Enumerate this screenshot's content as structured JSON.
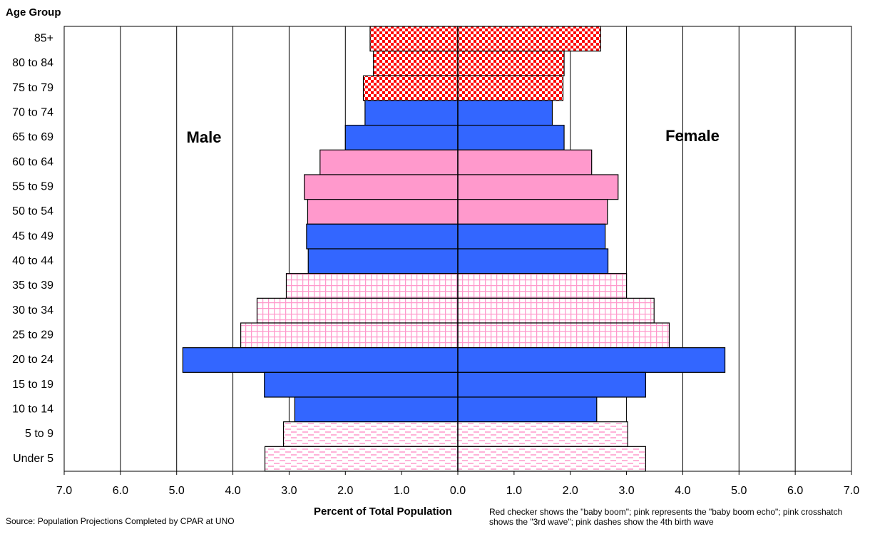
{
  "chart_data": {
    "type": "pyramid",
    "y_axis_label": "Age Group",
    "x_axis_label": "Percent of Total Population",
    "source": "Source: Population Projections Completed by CPAR at UNO",
    "note": "Red checker shows the \"baby boom\"; pink represents the \"baby boom echo\"; pink crosshatch shows the \"3rd wave\"; pink dashes show the 4th birth wave",
    "categories": [
      "85+",
      "80 to 84",
      "75 to 79",
      "70 to 74",
      "65 to 69",
      "60 to 64",
      "55 to 59",
      "50 to 54",
      "45 to 49",
      "40 to 44",
      "35 to 39",
      "30 to 34",
      "25 to 29",
      "20 to 24",
      "15 to 19",
      "10 to 14",
      "5 to 9",
      "Under 5"
    ],
    "bar_styles": [
      "checker",
      "checker",
      "checker",
      "solid",
      "solid",
      "pink",
      "pink",
      "pink",
      "solid",
      "solid",
      "crosshatch",
      "crosshatch",
      "crosshatch",
      "solid",
      "solid",
      "solid",
      "dashes",
      "dashes"
    ],
    "series": [
      {
        "name": "Male",
        "side": "left",
        "values": [
          1.56,
          1.5,
          1.68,
          1.65,
          2.0,
          2.45,
          2.73,
          2.67,
          2.69,
          2.66,
          3.05,
          3.57,
          3.86,
          4.89,
          3.44,
          2.9,
          3.1,
          3.43
        ]
      },
      {
        "name": "Female",
        "side": "right",
        "values": [
          2.54,
          1.89,
          1.87,
          1.68,
          1.89,
          2.38,
          2.85,
          2.66,
          2.62,
          2.67,
          3.0,
          3.49,
          3.76,
          4.75,
          3.34,
          2.47,
          3.02,
          3.34
        ]
      }
    ],
    "colors": {
      "solid": "#3366ff",
      "pink": "#ff99cc",
      "checker": "#ff0000",
      "crosshatch": "#ff99cc",
      "dashes": "#ff99cc"
    },
    "xlim": [
      -7,
      7
    ],
    "xticks": [
      {
        "value": -7,
        "label": "7.0"
      },
      {
        "value": -6,
        "label": "6.0"
      },
      {
        "value": -5,
        "label": "5.0"
      },
      {
        "value": -4,
        "label": "4.0"
      },
      {
        "value": -3,
        "label": "3.0"
      },
      {
        "value": -2,
        "label": "2.0"
      },
      {
        "value": -1,
        "label": "1.0"
      },
      {
        "value": 0,
        "label": "0.0"
      },
      {
        "value": 1,
        "label": "1.0"
      },
      {
        "value": 2,
        "label": "2.0"
      },
      {
        "value": 3,
        "label": "3.0"
      },
      {
        "value": 4,
        "label": "4.0"
      },
      {
        "value": 5,
        "label": "5.0"
      },
      {
        "value": 6,
        "label": "6.0"
      },
      {
        "value": 7,
        "label": "7.0"
      }
    ],
    "grid": true
  }
}
